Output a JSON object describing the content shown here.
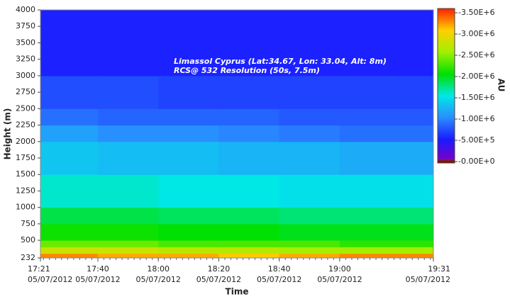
{
  "chart_data": {
    "type": "heatmap",
    "annotations": [
      "Limassol Cyprus (Lat:34.67, Lon: 33.04, Alt: 8m)",
      "RCS@ 532 Resolution (50s, 7.5m)"
    ],
    "x_label": "Time",
    "y_label": "Height (m)",
    "colorbar_label": "AU",
    "xlim": [
      "05/07/2012 17:21",
      "05/07/2012 19:31"
    ],
    "xticks": [
      {
        "value": "05/07/2012 17:21",
        "label": [
          "17:21",
          "05/07/2012"
        ]
      },
      {
        "value": "05/07/2012 17:40",
        "label": [
          "17:40",
          "05/07/2012"
        ]
      },
      {
        "value": "05/07/2012 18:00",
        "label": [
          "18:00",
          "05/07/2012"
        ]
      },
      {
        "value": "05/07/2012 18:20",
        "label": [
          "18:20",
          "05/07/2012"
        ]
      },
      {
        "value": "05/07/2012 18:40",
        "label": [
          "18:40",
          "05/07/2012"
        ]
      },
      {
        "value": "05/07/2012 19:00",
        "label": [
          "19:00",
          "05/07/2012"
        ]
      },
      {
        "value": "05/07/2012 19:31",
        "label": [
          "19:31",
          "05/07/2012"
        ]
      }
    ],
    "ylim": [
      232,
      4000
    ],
    "yticks": [
      232,
      500,
      750,
      1000,
      1250,
      1500,
      1750,
      2000,
      2250,
      2500,
      2750,
      3000,
      3250,
      3500,
      3750,
      4000
    ],
    "x_bins": [
      "05/07/2012 17:21",
      "05/07/2012 17:40",
      "05/07/2012 18:00",
      "05/07/2012 18:20",
      "05/07/2012 18:40",
      "05/07/2012 19:00",
      "05/07/2012 19:31"
    ],
    "y_bins": [
      232,
      300,
      400,
      500,
      750,
      1000,
      1500,
      2000,
      2250,
      2500,
      3000,
      4000
    ],
    "z": [
      [
        3300000,
        3200000,
        3200000,
        3100000,
        3200000,
        3300000
      ],
      [
        2800000,
        2800000,
        2700000,
        2700000,
        2600000,
        2600000
      ],
      [
        2400000,
        2400000,
        2300000,
        2300000,
        2300000,
        2200000
      ],
      [
        2100000,
        2100000,
        2050000,
        2050000,
        2000000,
        2000000
      ],
      [
        1900000,
        1900000,
        1850000,
        1850000,
        1800000,
        1800000
      ],
      [
        1600000,
        1600000,
        1550000,
        1550000,
        1500000,
        1500000
      ],
      [
        1350000,
        1300000,
        1300000,
        1250000,
        1250000,
        1200000
      ],
      [
        1150000,
        1050000,
        1050000,
        1000000,
        950000,
        900000
      ],
      [
        900000,
        850000,
        850000,
        850000,
        800000,
        800000
      ],
      [
        750000,
        750000,
        700000,
        700000,
        700000,
        700000
      ],
      [
        550000,
        550000,
        550000,
        550000,
        550000,
        550000
      ]
    ],
    "clim": [
      0,
      3600000
    ],
    "colormap": [
      "#8000c0",
      "#1a1aff",
      "#2a8cff",
      "#00e8e8",
      "#00e000",
      "#a0f000",
      "#ffd000",
      "#ff2000"
    ],
    "cticks": [
      {
        "value": 0,
        "label": "-0.00E+0"
      },
      {
        "value": 500000,
        "label": "-5.00E+5"
      },
      {
        "value": 1000000,
        "label": "-1.00E+6"
      },
      {
        "value": 1500000,
        "label": "-1.50E+6"
      },
      {
        "value": 2000000,
        "label": "-2.00E+6"
      },
      {
        "value": 2500000,
        "label": "-2.50E+6"
      },
      {
        "value": 3000000,
        "label": "-3.00E+6"
      },
      {
        "value": 3500000,
        "label": "-3.50E+6"
      }
    ]
  }
}
